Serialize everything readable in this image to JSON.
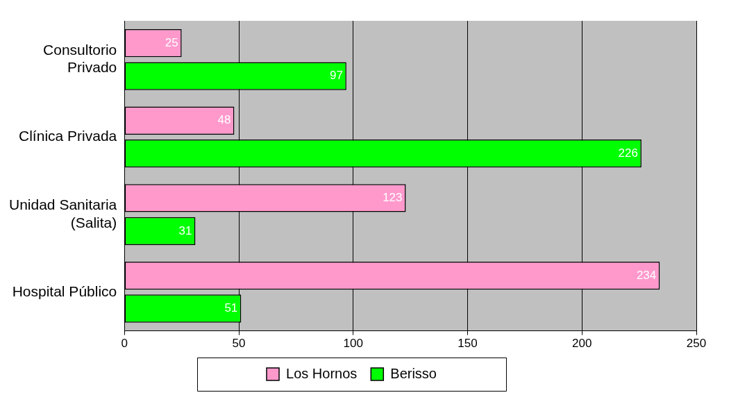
{
  "chart_data": {
    "type": "bar",
    "orientation": "horizontal",
    "categories": [
      "Consultorio Privado",
      "Clínica Privada",
      "Unidad Sanitaria (Salita)",
      "Hospital Público"
    ],
    "series": [
      {
        "name": "Los Hornos",
        "color": "#ff99cc",
        "values": [
          25,
          48,
          123,
          234
        ]
      },
      {
        "name": "Berisso",
        "color": "#00ff00",
        "values": [
          97,
          226,
          31,
          51
        ]
      }
    ],
    "xlim": [
      0,
      250
    ],
    "xticks": [
      0,
      50,
      100,
      150,
      200,
      250
    ],
    "grid": "x",
    "legend": "bottom",
    "data_labels": true
  }
}
